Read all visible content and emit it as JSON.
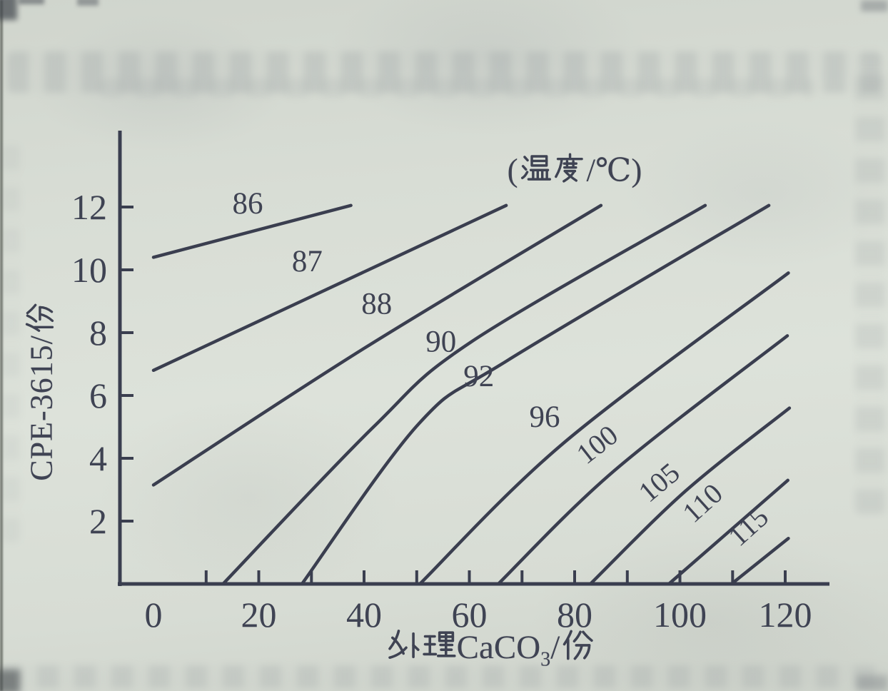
{
  "page": {
    "paper_color": "#d7dcd4",
    "ink_color": "#3a3e4f",
    "text_color": "#3f4353"
  },
  "labels": {
    "title": "(温度/℃)",
    "ylabel_latin": "CPE-3615/",
    "ylabel_cjk": "份",
    "xlabel_prefix": "处理CaCO",
    "xlabel_sub": "3",
    "xlabel_suffix": "/份"
  },
  "chart_data": {
    "type": "line",
    "variant": "temperature-contour-map",
    "title": "(温度/℃)",
    "xlabel": "处理CaCO3/份",
    "ylabel": "CPE-3615/份",
    "xlim": [
      0,
      128
    ],
    "ylim": [
      0,
      14.4
    ],
    "grid": false,
    "legend": false,
    "x_ticks_labeled": [
      0,
      20,
      40,
      60,
      80,
      100,
      120
    ],
    "x_ticks_all": [
      10,
      20,
      30,
      40,
      50,
      60,
      70,
      80,
      90,
      100,
      110,
      120
    ],
    "y_ticks": [
      2,
      4,
      6,
      8,
      10,
      12
    ],
    "series": [
      {
        "label": "86",
        "temperature_c": 86,
        "points": [
          [
            0,
            10.4
          ],
          [
            37.5,
            12.05
          ]
        ],
        "label_at": [
          17.9,
          11.8
        ],
        "label_rotation": 0
      },
      {
        "label": "87",
        "temperature_c": 87,
        "points": [
          [
            0,
            6.8
          ],
          [
            67,
            12.05
          ]
        ],
        "label_at": [
          29.2,
          9.95
        ],
        "label_rotation": 0
      },
      {
        "label": "88",
        "temperature_c": 88,
        "points": [
          [
            0,
            3.15
          ],
          [
            40,
            7.5
          ],
          [
            85,
            12.05
          ]
        ],
        "label_at": [
          42.4,
          8.6
        ],
        "label_rotation": 0
      },
      {
        "label": "90",
        "temperature_c": 90,
        "points": [
          [
            13.2,
            0
          ],
          [
            41.8,
            5.0
          ],
          [
            60.3,
            7.7
          ],
          [
            104.8,
            12.05
          ]
        ],
        "label_at": [
          54.6,
          7.4
        ],
        "label_rotation": 0
      },
      {
        "label": "92",
        "temperature_c": 92,
        "points": [
          [
            28.2,
            0
          ],
          [
            50.4,
            5.1
          ],
          [
            67.1,
            7.1
          ],
          [
            116.9,
            12.05
          ]
        ],
        "label_at": [
          61.8,
          6.3
        ],
        "label_rotation": 0
      },
      {
        "label": "96",
        "temperature_c": 96,
        "points": [
          [
            50.6,
            0
          ],
          [
            78,
            4.5
          ],
          [
            120.6,
            9.9
          ]
        ],
        "label_at": [
          74.3,
          5.0
        ],
        "label_rotation": 0
      },
      {
        "label": "100",
        "temperature_c": 100,
        "points": [
          [
            65.5,
            0
          ],
          [
            87.5,
            3.6
          ],
          [
            120.4,
            7.9
          ]
        ],
        "label_at": [
          85.4,
          4.2
        ],
        "label_rotation": -38
      },
      {
        "label": "105",
        "temperature_c": 105,
        "points": [
          [
            83,
            0
          ],
          [
            101,
            2.95
          ],
          [
            120.8,
            5.6
          ]
        ],
        "label_at": [
          97.2,
          3.0
        ],
        "label_rotation": -40
      },
      {
        "label": "110",
        "temperature_c": 110,
        "points": [
          [
            97.9,
            0
          ],
          [
            120.5,
            3.3
          ]
        ],
        "label_at": [
          105.5,
          2.35
        ],
        "label_rotation": -42
      },
      {
        "label": "115",
        "temperature_c": 115,
        "points": [
          [
            109.8,
            0
          ],
          [
            120.6,
            1.45
          ]
        ],
        "label_at": [
          114.2,
          1.6
        ],
        "label_rotation": -42
      }
    ]
  }
}
